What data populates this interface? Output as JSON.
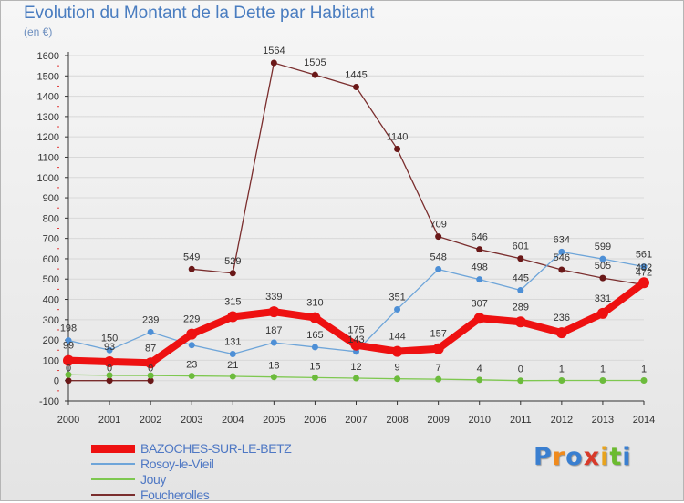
{
  "header": {
    "title": "Evolution du Montant de la Dette par Habitant",
    "subtitle": "(en €)"
  },
  "logo": {
    "text": "Proxiti",
    "letter_colors": [
      "#3a7fd0",
      "#f08a1c",
      "#3a7fd0",
      "#d83a2a",
      "#e8a31c",
      "#6cbb30",
      "#3a7fd0"
    ]
  },
  "colors": {
    "grid": "#d8d8d8",
    "axis": "#333333",
    "tick_text": "#333333",
    "label_text": "#333333",
    "minor_tick": "#e03a3a"
  },
  "chart_data": {
    "type": "line",
    "x": [
      2000,
      2001,
      2002,
      2003,
      2004,
      2005,
      2006,
      2007,
      2008,
      2009,
      2010,
      2011,
      2012,
      2013,
      2014
    ],
    "xlabel": "",
    "ylabel": "",
    "ylim": [
      -100,
      1600
    ],
    "yticks": [
      -100,
      0,
      100,
      200,
      300,
      400,
      500,
      600,
      700,
      800,
      900,
      1000,
      1100,
      1200,
      1300,
      1400,
      1500,
      1600
    ],
    "grid": "horizontal",
    "legend_position": "bottom-left",
    "series": [
      {
        "name": "BAZOCHES-SUR-LE-BETZ",
        "color": "#ee1111",
        "line_width": 8,
        "marker_radius": 6,
        "marker_color": "#ee1111",
        "values": [
          99,
          93,
          87,
          229,
          315,
          339,
          310,
          175,
          144,
          157,
          307,
          289,
          236,
          331,
          482
        ]
      },
      {
        "name": "Rosoy-le-Vieil",
        "color": "#6ea5d9",
        "line_width": 1.3,
        "marker_radius": 3.5,
        "marker_color": "#4d8fd6",
        "values": [
          198,
          150,
          239,
          175,
          131,
          187,
          165,
          143,
          351,
          548,
          498,
          445,
          634,
          599,
          561
        ]
      },
      {
        "name": "Jouy",
        "color": "#7ec850",
        "line_width": 1.3,
        "marker_radius": 3.5,
        "marker_color": "#6cbb3c",
        "values": [
          29,
          26,
          25,
          23,
          21,
          18,
          15,
          12,
          9,
          7,
          4,
          0,
          1,
          1,
          1
        ]
      },
      {
        "name": "Foucherolles",
        "color": "#7a2d2d",
        "line_width": 1.3,
        "marker_radius": 3.5,
        "marker_color": "#6a1818",
        "values": [
          0,
          0,
          0,
          549,
          529,
          1564,
          1505,
          1445,
          1140,
          709,
          646,
          601,
          546,
          505,
          472
        ]
      }
    ],
    "data_labels": [
      {
        "series": 0,
        "x": 2000,
        "text": "99"
      },
      {
        "series": 0,
        "x": 2001,
        "text": "93"
      },
      {
        "series": 0,
        "x": 2002,
        "text": "87"
      },
      {
        "series": 0,
        "x": 2003,
        "text": "229"
      },
      {
        "series": 0,
        "x": 2004,
        "text": "315"
      },
      {
        "series": 0,
        "x": 2005,
        "text": "339"
      },
      {
        "series": 0,
        "x": 2006,
        "text": "310"
      },
      {
        "series": 0,
        "x": 2007,
        "text": "175"
      },
      {
        "series": 0,
        "x": 2008,
        "text": "144"
      },
      {
        "series": 0,
        "x": 2009,
        "text": "157"
      },
      {
        "series": 0,
        "x": 2010,
        "text": "307"
      },
      {
        "series": 0,
        "x": 2011,
        "text": "289"
      },
      {
        "series": 0,
        "x": 2012,
        "text": "236"
      },
      {
        "series": 0,
        "x": 2013,
        "text": "331"
      },
      {
        "series": 0,
        "x": 2014,
        "text": "482"
      },
      {
        "series": 1,
        "x": 2000,
        "text": "198"
      },
      {
        "series": 1,
        "x": 2001,
        "text": "150"
      },
      {
        "series": 1,
        "x": 2002,
        "text": "239"
      },
      {
        "series": 1,
        "x": 2004,
        "text": "131"
      },
      {
        "series": 1,
        "x": 2005,
        "text": "187"
      },
      {
        "series": 1,
        "x": 2006,
        "text": "165"
      },
      {
        "series": 1,
        "x": 2007,
        "text": "143"
      },
      {
        "series": 1,
        "x": 2008,
        "text": "351"
      },
      {
        "series": 1,
        "x": 2009,
        "text": "548"
      },
      {
        "series": 1,
        "x": 2010,
        "text": "498"
      },
      {
        "series": 1,
        "x": 2011,
        "text": "445"
      },
      {
        "series": 1,
        "x": 2012,
        "text": "634"
      },
      {
        "series": 1,
        "x": 2013,
        "text": "599"
      },
      {
        "series": 1,
        "x": 2014,
        "text": "561"
      },
      {
        "series": 2,
        "x": 2003,
        "text": "23"
      },
      {
        "series": 2,
        "x": 2004,
        "text": "21"
      },
      {
        "series": 2,
        "x": 2005,
        "text": "18"
      },
      {
        "series": 2,
        "x": 2006,
        "text": "15"
      },
      {
        "series": 2,
        "x": 2007,
        "text": "12"
      },
      {
        "series": 2,
        "x": 2008,
        "text": "9"
      },
      {
        "series": 2,
        "x": 2009,
        "text": "7"
      },
      {
        "series": 2,
        "x": 2010,
        "text": "4"
      },
      {
        "series": 2,
        "x": 2011,
        "text": "0"
      },
      {
        "series": 2,
        "x": 2012,
        "text": "1"
      },
      {
        "series": 2,
        "x": 2013,
        "text": "1"
      },
      {
        "series": 2,
        "x": 2014,
        "text": "1"
      },
      {
        "series": 3,
        "x": 2000,
        "text": "0"
      },
      {
        "series": 3,
        "x": 2001,
        "text": "0"
      },
      {
        "series": 3,
        "x": 2002,
        "text": "0"
      },
      {
        "series": 3,
        "x": 2003,
        "text": "549"
      },
      {
        "series": 3,
        "x": 2004,
        "text": "529"
      },
      {
        "series": 3,
        "x": 2005,
        "text": "1564"
      },
      {
        "series": 3,
        "x": 2006,
        "text": "1505"
      },
      {
        "series": 3,
        "x": 2007,
        "text": "1445"
      },
      {
        "series": 3,
        "x": 2008,
        "text": "1140"
      },
      {
        "series": 3,
        "x": 2009,
        "text": "709"
      },
      {
        "series": 3,
        "x": 2010,
        "text": "646"
      },
      {
        "series": 3,
        "x": 2011,
        "text": "601"
      },
      {
        "series": 3,
        "x": 2012,
        "text": "546"
      },
      {
        "series": 3,
        "x": 2013,
        "text": "505"
      },
      {
        "series": 3,
        "x": 2014,
        "text": "472"
      }
    ]
  }
}
